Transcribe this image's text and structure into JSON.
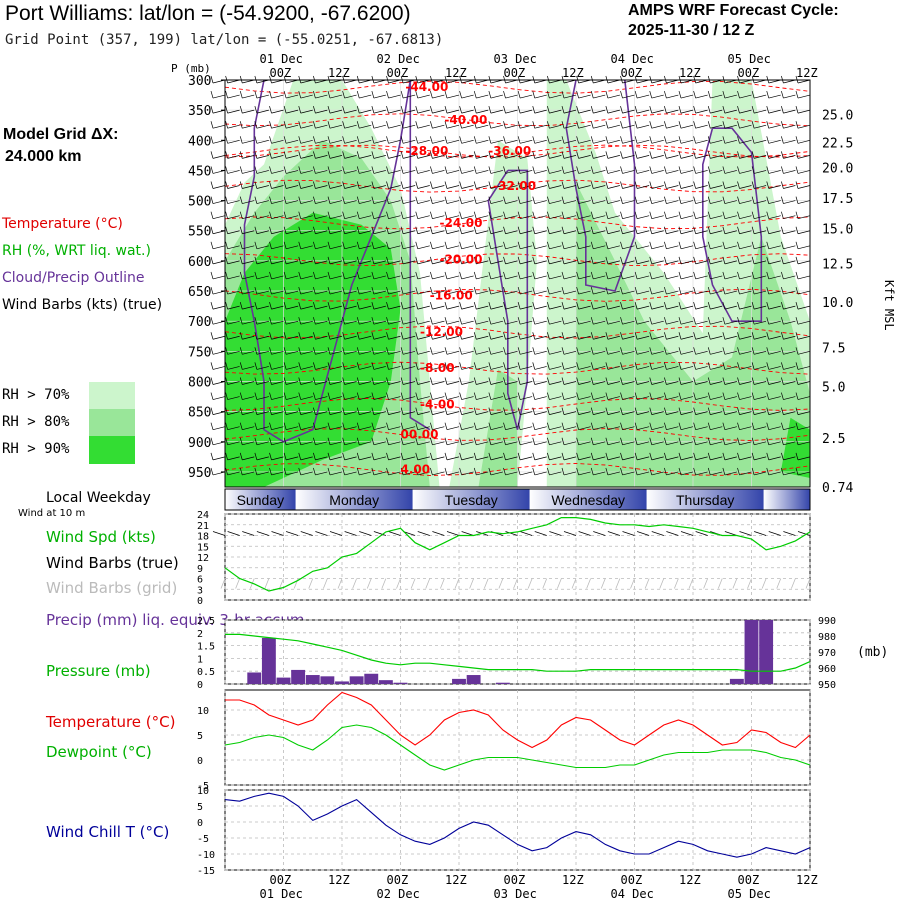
{
  "header": {
    "title": "Port Williams:  lat/lon = (-54.9200, -67.6200)",
    "grid_point": "Grid Point (357, 199) lat/lon = (-55.0251, -67.6813)",
    "forecast_label": "AMPS WRF Forecast Cycle:",
    "cycle": "2025-11-30 / 12  Z",
    "model_grid_label": "Model Grid ΔX:",
    "model_grid_value": "24.000 km"
  },
  "legend": {
    "temperature": "Temperature (°C)",
    "rh": "RH (%, WRT liq. wat.)",
    "cloud": "Cloud/Precip Outline",
    "wind_barbs": "Wind Barbs (kts) (true)",
    "rh_levels": [
      "RH > 70%",
      "RH > 80%",
      "RH > 90%"
    ],
    "rh_colors": [
      "#ccf5cc",
      "#99e699",
      "#33dd33"
    ]
  },
  "colors": {
    "temperature": "#ff0000",
    "dewpoint": "#00cc00",
    "cloud": "#663399",
    "precip": "#663399",
    "wind_chill": "#000099",
    "grid": "#bbbbbb"
  },
  "time_axis": {
    "hours": [
      0,
      12,
      24,
      36,
      48,
      60,
      72,
      84,
      96,
      108,
      120
    ],
    "hour_labels": [
      "00Z",
      "12Z",
      "00Z",
      "12Z",
      "00Z",
      "12Z",
      "00Z",
      "12Z",
      "00Z",
      "12Z"
    ],
    "hour_label_hours": [
      12,
      24,
      36,
      48,
      60,
      72,
      84,
      96,
      108,
      120
    ],
    "extra_top_labels": [
      "12Z",
      "12Z"
    ],
    "dates": [
      "01 Dec",
      "02 Dec",
      "03 Dec",
      "04 Dec",
      "05 Dec"
    ],
    "date_hours": [
      12,
      36,
      60,
      84,
      108
    ],
    "range": [
      0,
      120
    ]
  },
  "days": [
    {
      "label": "Sunday",
      "start": 0,
      "end": 14.5
    },
    {
      "label": "Monday",
      "start": 14.5,
      "end": 38.5
    },
    {
      "label": "Tuesday",
      "start": 38.5,
      "end": 62.5
    },
    {
      "label": "Wednesday",
      "start": 62.5,
      "end": 86.5
    },
    {
      "label": "Thursday",
      "start": 86.5,
      "end": 110.5
    },
    {
      "label": "",
      "start": 110.5,
      "end": 120
    }
  ],
  "local_weekday_label": "Local Weekday",
  "wind10m_label": "Wind at 10 m",
  "chart_data": [
    {
      "type": "heatmap",
      "title": "Time-height cross section",
      "ylabel": "P (mb)",
      "y2label": "Kft MSL",
      "y_ticks": [
        300,
        350,
        400,
        450,
        500,
        550,
        600,
        650,
        700,
        750,
        800,
        850,
        900,
        950
      ],
      "ylim": [
        300,
        975
      ],
      "kft_labels": [
        "25.0",
        "22.5",
        "20.0",
        "17.5",
        "15.0",
        "12.5",
        "10.0",
        "7.5",
        "5.0",
        "2.5",
        "0.74"
      ],
      "kft_pressures": [
        357,
        404,
        445,
        496,
        546,
        604,
        668,
        744,
        808,
        894,
        975
      ],
      "temperature_labels": [
        {
          "text": "-44.00",
          "hour": 37,
          "p": 312
        },
        {
          "text": "-40.00",
          "hour": 45,
          "p": 366
        },
        {
          "text": "-28.00",
          "hour": 37,
          "p": 418
        },
        {
          "text": "-36.00",
          "hour": 54,
          "p": 418
        },
        {
          "text": "-32.00",
          "hour": 55,
          "p": 476
        },
        {
          "text": "-24.00",
          "hour": 44,
          "p": 537
        },
        {
          "text": "-20.00",
          "hour": 44,
          "p": 598
        },
        {
          "text": "-16.00",
          "hour": 42,
          "p": 657
        },
        {
          "text": "-12.00",
          "hour": 40,
          "p": 718
        },
        {
          "text": "-8.00",
          "hour": 40,
          "p": 778
        },
        {
          "text": "-4.00",
          "hour": 40,
          "p": 838
        },
        {
          "text": "00.00",
          "hour": 36,
          "p": 888
        },
        {
          "text": "4.00",
          "hour": 36,
          "p": 946
        }
      ]
    },
    {
      "type": "line",
      "title": "Wind speed at 10 m",
      "legend": [
        "Wind Spd (kts)",
        "Wind Barbs (true)",
        "Wind Barbs (grid)"
      ],
      "ylabel": "kts",
      "y_ticks": [
        0,
        3,
        6,
        9,
        12,
        15,
        18,
        21,
        24
      ],
      "ylim": [
        0,
        24
      ],
      "x": [
        0,
        3,
        6,
        9,
        12,
        15,
        18,
        21,
        24,
        27,
        30,
        33,
        36,
        39,
        42,
        45,
        48,
        51,
        54,
        57,
        60,
        63,
        66,
        69,
        72,
        75,
        78,
        81,
        84,
        87,
        90,
        93,
        96,
        99,
        102,
        105,
        108,
        111,
        114,
        117,
        120
      ],
      "series": [
        {
          "name": "Wind Spd (kts)",
          "values": [
            9,
            6,
            4.5,
            2.5,
            3.5,
            5.5,
            8,
            9,
            12,
            13,
            16,
            19,
            20,
            16,
            14,
            16,
            18,
            18,
            19,
            18.5,
            19,
            20,
            21,
            23,
            23,
            22.5,
            21.5,
            21,
            21,
            20.5,
            21,
            20.5,
            20,
            19,
            18,
            18,
            17,
            14,
            15,
            16.5,
            19
          ]
        }
      ]
    },
    {
      "type": "bar",
      "title": "Precip 3-hr accum and pressure",
      "legend": [
        "Precip (mm) liq. equiv. 3-hr accum",
        "Pressure (mb)"
      ],
      "y_ticks": [
        0.0,
        0.5,
        1.0,
        1.5,
        2.0,
        2.5
      ],
      "ylim": [
        0,
        2.5
      ],
      "y2_ticks": [
        950,
        960,
        970,
        980,
        990
      ],
      "y2lim": [
        950,
        990
      ],
      "y2label": "(mb)",
      "x": [
        0,
        3,
        6,
        9,
        12,
        15,
        18,
        21,
        24,
        27,
        30,
        33,
        36,
        39,
        42,
        45,
        48,
        51,
        54,
        57,
        60,
        63,
        66,
        69,
        72,
        75,
        78,
        81,
        84,
        87,
        90,
        93,
        96,
        99,
        102,
        105,
        108,
        111,
        114,
        117,
        120
      ],
      "precip": [
        0,
        0,
        0.45,
        1.8,
        0.25,
        0.55,
        0.35,
        0.3,
        0.1,
        0.3,
        0.4,
        0.15,
        0.05,
        0,
        0,
        0,
        0.2,
        0.35,
        0,
        0.05,
        0,
        0,
        0,
        0,
        0,
        0,
        0,
        0,
        0,
        0,
        0,
        0,
        0,
        0,
        0,
        0.2,
        2.5,
        2.5,
        0,
        0,
        0
      ],
      "pressure": [
        981,
        981,
        980,
        979,
        978,
        977,
        975,
        973,
        971,
        968,
        965,
        963,
        962,
        963,
        963,
        962,
        961,
        960,
        959,
        959,
        959,
        959,
        958,
        958,
        958,
        959,
        959,
        959,
        959,
        959,
        959,
        959,
        959,
        959,
        959,
        959,
        958,
        958,
        958,
        960,
        964
      ]
    },
    {
      "type": "line",
      "title": "Temperature and dewpoint",
      "legend": [
        "Temperature (°C)",
        "Dewpoint (°C)"
      ],
      "y_ticks": [
        -5,
        0,
        5,
        10
      ],
      "ylim": [
        -5,
        14
      ],
      "x": [
        0,
        3,
        6,
        9,
        12,
        15,
        18,
        21,
        24,
        27,
        30,
        33,
        36,
        39,
        42,
        45,
        48,
        51,
        54,
        57,
        60,
        63,
        66,
        69,
        72,
        75,
        78,
        81,
        84,
        87,
        90,
        93,
        96,
        99,
        102,
        105,
        108,
        111,
        114,
        117,
        120
      ],
      "series": [
        {
          "name": "Temperature (°C)",
          "values": [
            12,
            12,
            11,
            9,
            8,
            7,
            8,
            11,
            13.5,
            12.5,
            11,
            8,
            5,
            3,
            5,
            8,
            9.5,
            10,
            9,
            6,
            4,
            2.5,
            4,
            7,
            8.5,
            8,
            6,
            4,
            3,
            5,
            7,
            8,
            7,
            5,
            3,
            3.5,
            6,
            5.5,
            3.5,
            2.5,
            5
          ]
        },
        {
          "name": "Dewpoint (°C)",
          "values": [
            3,
            3.5,
            4.5,
            5,
            4.5,
            3,
            2,
            4,
            6.5,
            7,
            6.5,
            5,
            3,
            1,
            -1,
            -2,
            -1,
            0,
            0.5,
            0.5,
            0.5,
            0,
            -0.5,
            -1,
            -1.5,
            -1.5,
            -1.5,
            -1,
            -1,
            0,
            1,
            1.5,
            1.5,
            1.5,
            2,
            2,
            2,
            1.5,
            0.5,
            0,
            -1
          ]
        }
      ]
    },
    {
      "type": "line",
      "title": "Wind chill",
      "legend": [
        "Wind Chill T (°C)"
      ],
      "y_ticks": [
        -15,
        -10,
        -5,
        0,
        5,
        10
      ],
      "ylim": [
        -15,
        10
      ],
      "x": [
        0,
        3,
        6,
        9,
        12,
        15,
        18,
        21,
        24,
        27,
        30,
        33,
        36,
        39,
        42,
        45,
        48,
        51,
        54,
        57,
        60,
        63,
        66,
        69,
        72,
        75,
        78,
        81,
        84,
        87,
        90,
        93,
        96,
        99,
        102,
        105,
        108,
        111,
        114,
        117,
        120
      ],
      "series": [
        {
          "name": "Wind Chill T (°C)",
          "values": [
            7,
            6.5,
            8,
            9,
            8,
            5,
            0.5,
            2.5,
            5,
            7,
            3,
            -1,
            -4,
            -6,
            -7,
            -5,
            -2,
            0,
            -1,
            -4,
            -7,
            -9,
            -8,
            -5,
            -3,
            -4,
            -7,
            -9,
            -10,
            -10,
            -8,
            -6,
            -7,
            -9,
            -10,
            -11,
            -10,
            -8,
            -9,
            -10,
            -8
          ]
        }
      ]
    }
  ]
}
